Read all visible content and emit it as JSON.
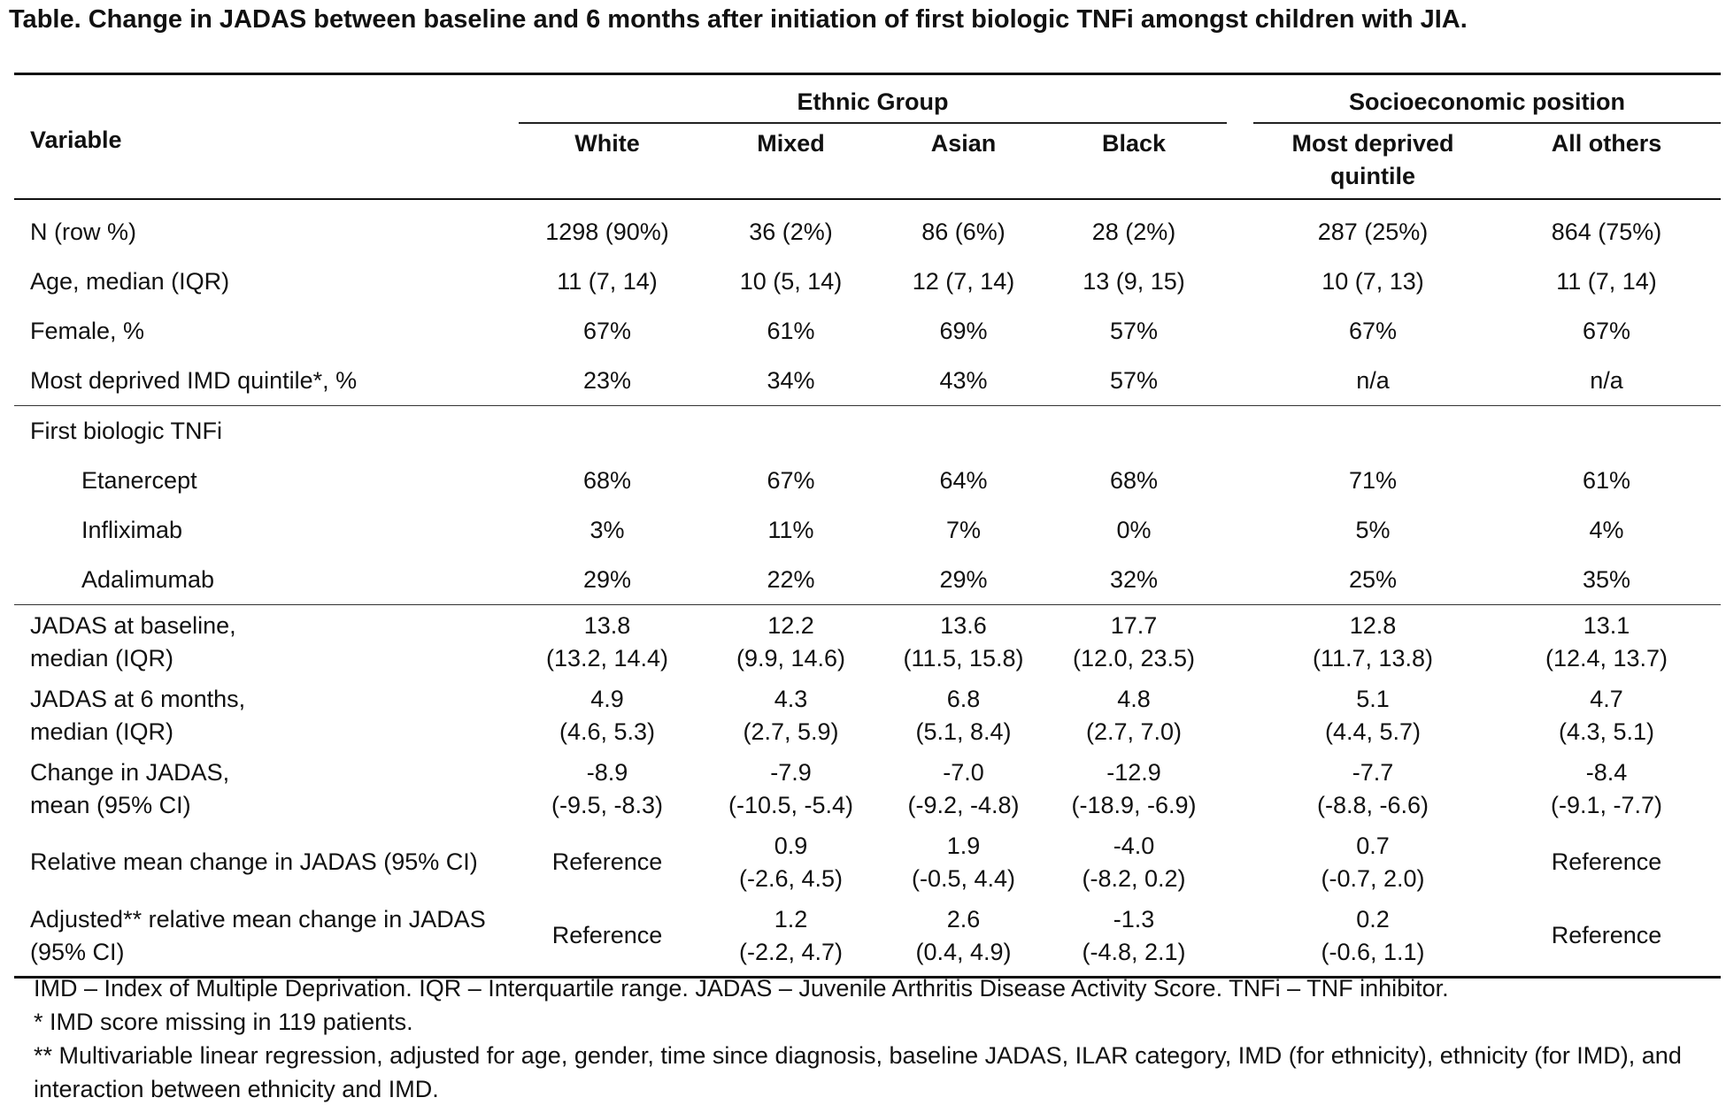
{
  "title": "Table. Change in JADAS between baseline and 6 months after initiation of first biologic TNFi amongst children with JIA.",
  "header": {
    "variable": "Variable",
    "group_ethnic": "Ethnic Group",
    "group_socio": "Socioeconomic position",
    "columns": [
      "White",
      "Mixed",
      "Asian",
      "Black",
      "Most deprived quintile",
      "All others"
    ]
  },
  "section1": [
    {
      "label": "N (row %)",
      "values": [
        "1298 (90%)",
        "36 (2%)",
        "86 (6%)",
        "28 (2%)",
        "287 (25%)",
        "864 (75%)"
      ]
    },
    {
      "label": "Age, median (IQR)",
      "values": [
        "11 (7, 14)",
        "10 (5, 14)",
        "12 (7, 14)",
        "13 (9, 15)",
        "10 (7, 13)",
        "11 (7, 14)"
      ]
    },
    {
      "label": "Female, %",
      "values": [
        "67%",
        "61%",
        "69%",
        "57%",
        "67%",
        "67%"
      ]
    },
    {
      "label": "Most deprived IMD quintile*, %",
      "values": [
        "23%",
        "34%",
        "43%",
        "57%",
        "n/a",
        "n/a"
      ]
    }
  ],
  "section2": {
    "heading": "First biologic TNFi",
    "rows": [
      {
        "label": "Etanercept",
        "values": [
          "68%",
          "67%",
          "64%",
          "68%",
          "71%",
          "61%"
        ]
      },
      {
        "label": "Infliximab",
        "values": [
          "3%",
          "11%",
          "7%",
          "0%",
          "5%",
          "4%"
        ]
      },
      {
        "label": "Adalimumab",
        "values": [
          "29%",
          "22%",
          "29%",
          "32%",
          "25%",
          "35%"
        ]
      }
    ]
  },
  "section3": [
    {
      "label1": "JADAS at baseline,",
      "label2": "median (IQR)",
      "values": [
        [
          "13.8",
          "(13.2, 14.4)"
        ],
        [
          "12.2",
          "(9.9, 14.6)"
        ],
        [
          "13.6",
          "(11.5, 15.8)"
        ],
        [
          "17.7",
          "(12.0, 23.5)"
        ],
        [
          "12.8",
          "(11.7, 13.8)"
        ],
        [
          "13.1",
          "(12.4, 13.7)"
        ]
      ]
    },
    {
      "label1": "JADAS at 6 months,",
      "label2": "median (IQR)",
      "values": [
        [
          "4.9",
          "(4.6, 5.3)"
        ],
        [
          "4.3",
          "(2.7, 5.9)"
        ],
        [
          "6.8",
          "(5.1, 8.4)"
        ],
        [
          "4.8",
          "(2.7, 7.0)"
        ],
        [
          "5.1",
          "(4.4, 5.7)"
        ],
        [
          "4.7",
          "(4.3, 5.1)"
        ]
      ]
    },
    {
      "label1": "Change in JADAS,",
      "label2": "mean (95% CI)",
      "values": [
        [
          "-8.9",
          "(-9.5, -8.3)"
        ],
        [
          "-7.9",
          "(-10.5, -5.4)"
        ],
        [
          "-7.0",
          "(-9.2, -4.8)"
        ],
        [
          "-12.9",
          "(-18.9, -6.9)"
        ],
        [
          "-7.7",
          "(-8.8, -6.6)"
        ],
        [
          "-8.4",
          "(-9.1, -7.7)"
        ]
      ]
    },
    {
      "label1": "Relative mean change in JADAS (95% CI)",
      "label2": "",
      "values": [
        [
          "Reference",
          ""
        ],
        [
          "0.9",
          "(-2.6, 4.5)"
        ],
        [
          "1.9",
          "(-0.5, 4.4)"
        ],
        [
          "-4.0",
          "(-8.2, 0.2)"
        ],
        [
          "0.7",
          "(-0.7, 2.0)"
        ],
        [
          "Reference",
          ""
        ]
      ]
    },
    {
      "label1": "Adjusted** relative mean change in JADAS",
      "label2": "(95% CI)",
      "values": [
        [
          "Reference",
          ""
        ],
        [
          "1.2",
          "(-2.2, 4.7)"
        ],
        [
          "2.6",
          "(0.4, 4.9)"
        ],
        [
          "-1.3",
          "(-4.8, 2.1)"
        ],
        [
          "0.2",
          "(-0.6, 1.1)"
        ],
        [
          "Reference",
          ""
        ]
      ]
    }
  ],
  "footnotes": [
    "IMD – Index of Multiple Deprivation. IQR – Interquartile range. JADAS – Juvenile Arthritis Disease Activity Score. TNFi – TNF inhibitor.",
    "* IMD score missing in 119 patients.",
    "** Multivariable linear regression, adjusted for age, gender, time since diagnosis, baseline JADAS, ILAR category, IMD (for ethnicity), ethnicity (for IMD), and interaction between ethnicity and IMD."
  ]
}
